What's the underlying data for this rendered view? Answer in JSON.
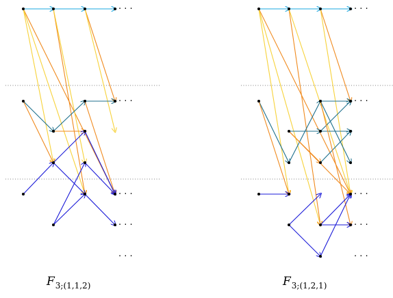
{
  "colors": {
    "cyan": "#1aa7e0",
    "orange": "#f08a1e",
    "yellow": "#f7d23a",
    "teal": "#1c6f8c",
    "blue": "#1a1ad8",
    "separator": "#555555",
    "node": "#000000"
  },
  "ellipsis": "· · ·",
  "diagrams": [
    {
      "id": "left",
      "caption_main": "F",
      "caption_sub": "3;(1,1,2)",
      "edges": [
        {
          "from": "0-0",
          "to": "1-0",
          "color": "cyan"
        },
        {
          "from": "1-0",
          "to": "2-0",
          "color": "cyan"
        },
        {
          "from": "2-0",
          "to": "3-0",
          "color": "cyan"
        },
        {
          "from": "0-0",
          "to": "3-6",
          "color": "orange"
        },
        {
          "from": "0-0",
          "to": "2-6",
          "color": "yellow"
        },
        {
          "from": "0-0",
          "to": "1-5",
          "color": "yellow"
        },
        {
          "from": "1-0",
          "to": "2-6",
          "color": "orange"
        },
        {
          "from": "1-0",
          "to": "2-5",
          "color": "yellow"
        },
        {
          "from": "2-0",
          "to": "3-3",
          "color": "orange"
        },
        {
          "from": "2-0",
          "to": "3-4",
          "color": "yellow"
        },
        {
          "from": "0-3",
          "to": "1-4",
          "color": "teal"
        },
        {
          "from": "1-4",
          "to": "2-3",
          "color": "teal"
        },
        {
          "from": "2-3",
          "to": "3-3",
          "color": "teal"
        },
        {
          "from": "0-3",
          "to": "1-5",
          "color": "orange"
        },
        {
          "from": "1-4",
          "to": "2-4",
          "color": "orange"
        },
        {
          "from": "2-3",
          "to": "3-6",
          "color": "orange"
        },
        {
          "from": "0-6",
          "to": "1-5",
          "color": "blue"
        },
        {
          "from": "1-5",
          "to": "2-6",
          "color": "blue"
        },
        {
          "from": "1-5",
          "to": "2-4",
          "color": "blue"
        },
        {
          "from": "1-7",
          "to": "2-5",
          "color": "blue"
        },
        {
          "from": "1-7",
          "to": "2-6",
          "color": "blue"
        },
        {
          "from": "2-6",
          "to": "3-7",
          "color": "blue"
        },
        {
          "from": "2-5",
          "to": "3-6",
          "color": "blue"
        },
        {
          "from": "2-4",
          "to": "3-6",
          "color": "blue"
        }
      ]
    },
    {
      "id": "right",
      "caption_main": "F",
      "caption_sub": "3;(1,2,1)",
      "edges": [
        {
          "from": "0-0",
          "to": "1-0",
          "color": "cyan"
        },
        {
          "from": "1-0",
          "to": "2-0",
          "color": "cyan"
        },
        {
          "from": "2-0",
          "to": "3-0",
          "color": "cyan"
        },
        {
          "from": "0-0",
          "to": "3-6",
          "color": "orange"
        },
        {
          "from": "0-0",
          "to": "2-7",
          "color": "yellow"
        },
        {
          "from": "0-0",
          "to": "1-6",
          "color": "yellow"
        },
        {
          "from": "1-0",
          "to": "2-7",
          "color": "orange"
        },
        {
          "from": "1-0",
          "to": "3-6",
          "color": "yellow"
        },
        {
          "from": "2-0",
          "to": "3-3",
          "color": "orange"
        },
        {
          "from": "2-0",
          "to": "3-6",
          "color": "yellow"
        },
        {
          "from": "0-3",
          "to": "1-5",
          "color": "teal"
        },
        {
          "from": "1-5",
          "to": "2-3",
          "color": "teal"
        },
        {
          "from": "2-3",
          "to": "3-3",
          "color": "teal"
        },
        {
          "from": "1-4",
          "to": "2-4",
          "color": "teal"
        },
        {
          "from": "2-4",
          "to": "3-3",
          "color": "teal"
        },
        {
          "from": "2-4",
          "to": "3-4",
          "color": "teal"
        },
        {
          "from": "2-5",
          "to": "3-4",
          "color": "teal"
        },
        {
          "from": "2-3",
          "to": "3-5",
          "color": "teal"
        },
        {
          "from": "0-3",
          "to": "1-6",
          "color": "orange"
        },
        {
          "from": "1-4",
          "to": "2-5",
          "color": "orange"
        },
        {
          "from": "1-4",
          "to": "3-6",
          "color": "orange"
        },
        {
          "from": "2-3",
          "to": "3-7",
          "color": "orange"
        },
        {
          "from": "0-6",
          "to": "1-6",
          "color": "blue"
        },
        {
          "from": "1-7",
          "to": "2-6",
          "color": "blue"
        },
        {
          "from": "2-7",
          "to": "3-6",
          "color": "blue"
        },
        {
          "from": "1-7",
          "to": "2-8",
          "color": "blue"
        },
        {
          "from": "2-8",
          "to": "3-6",
          "color": "blue"
        },
        {
          "from": "2-7",
          "to": "3-7",
          "color": "blue"
        }
      ]
    }
  ]
}
